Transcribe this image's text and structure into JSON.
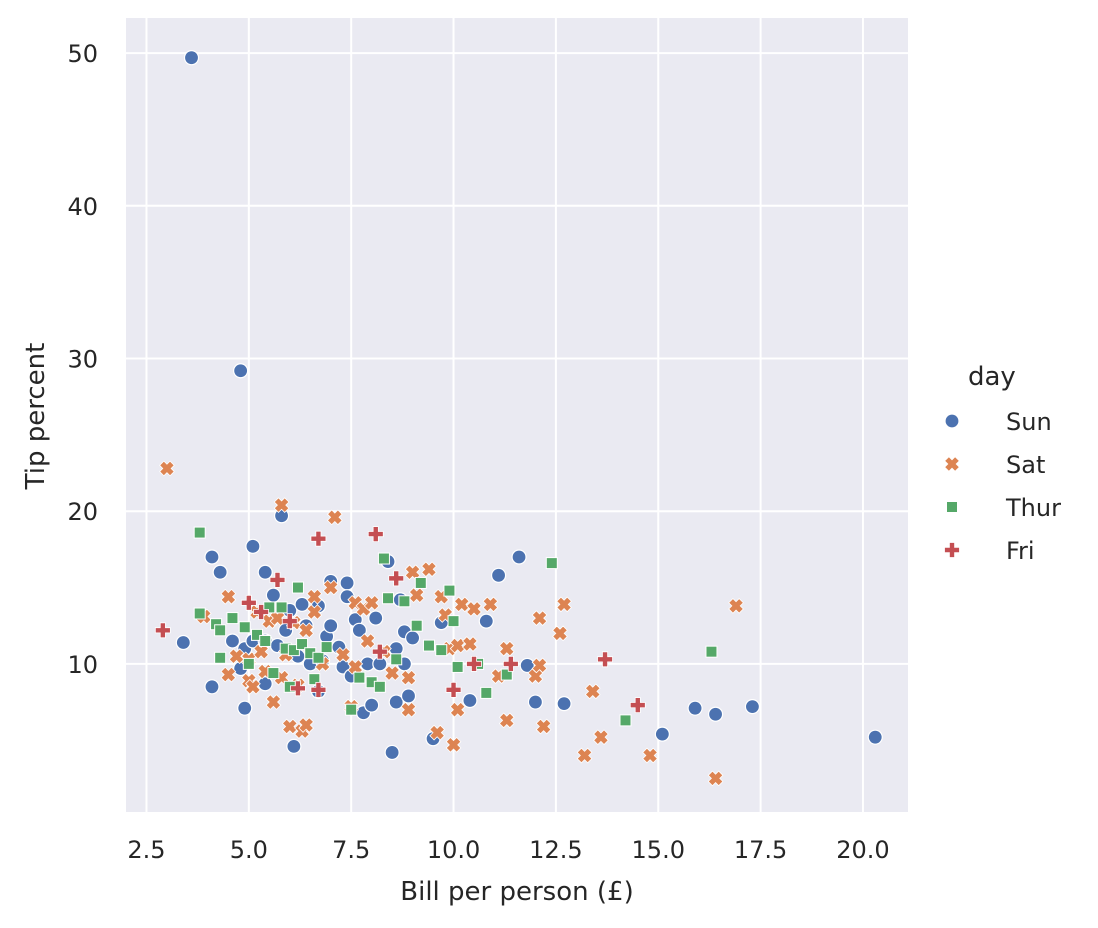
{
  "chart_data": {
    "type": "scatter",
    "title": "",
    "xlabel": "Bill per person (£)",
    "ylabel": "Tip percent",
    "xlim": [
      2.0,
      21.1
    ],
    "ylim": [
      0.3,
      52.3
    ],
    "xticks": [
      2.5,
      5.0,
      7.5,
      10.0,
      12.5,
      15.0,
      17.5,
      20.0
    ],
    "xtick_labels": [
      "2.5",
      "5.0",
      "7.5",
      "10.0",
      "12.5",
      "15.0",
      "17.5",
      "20.0"
    ],
    "yticks": [
      10,
      20,
      30,
      40,
      50
    ],
    "ytick_labels": [
      "10",
      "20",
      "30",
      "40",
      "50"
    ],
    "grid": true,
    "background": "#eaeaf2",
    "legend": {
      "title": "day",
      "placement": "right"
    },
    "series": [
      {
        "name": "Sun",
        "marker": "circle",
        "color": "#4c72b0",
        "points": [
          [
            3.6,
            49.7
          ],
          [
            4.8,
            29.2
          ],
          [
            3.4,
            11.4
          ],
          [
            4.1,
            8.5
          ],
          [
            4.1,
            17.0
          ],
          [
            4.3,
            16.0
          ],
          [
            4.6,
            11.5
          ],
          [
            4.8,
            9.7
          ],
          [
            4.9,
            7.1
          ],
          [
            4.9,
            11.0
          ],
          [
            5.1,
            11.5
          ],
          [
            5.1,
            17.7
          ],
          [
            5.4,
            16.0
          ],
          [
            5.4,
            11.5
          ],
          [
            5.4,
            8.7
          ],
          [
            5.6,
            14.5
          ],
          [
            5.7,
            11.2
          ],
          [
            5.8,
            19.7
          ],
          [
            5.9,
            12.2
          ],
          [
            6.0,
            13.5
          ],
          [
            6.1,
            4.6
          ],
          [
            6.2,
            10.5
          ],
          [
            6.3,
            13.9
          ],
          [
            6.4,
            12.5
          ],
          [
            6.5,
            10.0
          ],
          [
            6.7,
            8.2
          ],
          [
            6.7,
            13.8
          ],
          [
            6.8,
            10.2
          ],
          [
            6.9,
            11.8
          ],
          [
            7.0,
            15.4
          ],
          [
            7.0,
            12.5
          ],
          [
            7.2,
            11.1
          ],
          [
            7.3,
            9.8
          ],
          [
            7.4,
            15.3
          ],
          [
            7.4,
            14.4
          ],
          [
            7.5,
            9.2
          ],
          [
            7.6,
            12.9
          ],
          [
            7.7,
            12.2
          ],
          [
            7.8,
            6.8
          ],
          [
            8.0,
            7.3
          ],
          [
            7.9,
            10.0
          ],
          [
            8.1,
            13.0
          ],
          [
            8.2,
            10.0
          ],
          [
            8.4,
            16.7
          ],
          [
            8.5,
            4.2
          ],
          [
            8.6,
            7.5
          ],
          [
            8.6,
            11.0
          ],
          [
            8.7,
            14.2
          ],
          [
            8.8,
            12.1
          ],
          [
            8.8,
            10.0
          ],
          [
            8.9,
            7.9
          ],
          [
            9.0,
            11.7
          ],
          [
            9.5,
            5.1
          ],
          [
            9.7,
            12.7
          ],
          [
            10.4,
            7.6
          ],
          [
            10.8,
            12.8
          ],
          [
            11.1,
            15.8
          ],
          [
            11.6,
            17.0
          ],
          [
            11.8,
            9.9
          ],
          [
            12.0,
            7.5
          ],
          [
            12.7,
            7.4
          ],
          [
            15.1,
            5.4
          ],
          [
            15.9,
            7.1
          ],
          [
            16.4,
            6.7
          ],
          [
            17.3,
            7.2
          ],
          [
            20.3,
            5.2
          ]
        ]
      },
      {
        "name": "Sat",
        "marker": "x",
        "color": "#dd8452",
        "points": [
          [
            3.0,
            22.8
          ],
          [
            3.9,
            13.1
          ],
          [
            4.5,
            14.4
          ],
          [
            4.5,
            9.3
          ],
          [
            4.7,
            10.5
          ],
          [
            5.0,
            8.9
          ],
          [
            5.0,
            10.3
          ],
          [
            5.1,
            8.5
          ],
          [
            5.2,
            13.4
          ],
          [
            5.3,
            10.8
          ],
          [
            5.4,
            9.5
          ],
          [
            5.5,
            12.8
          ],
          [
            5.6,
            7.5
          ],
          [
            5.7,
            13.0
          ],
          [
            5.8,
            20.4
          ],
          [
            5.8,
            9.1
          ],
          [
            5.9,
            10.6
          ],
          [
            6.0,
            5.9
          ],
          [
            6.1,
            12.7
          ],
          [
            6.2,
            8.6
          ],
          [
            6.3,
            5.6
          ],
          [
            6.4,
            12.2
          ],
          [
            6.4,
            6.0
          ],
          [
            6.6,
            14.4
          ],
          [
            6.6,
            13.4
          ],
          [
            6.8,
            10.0
          ],
          [
            7.0,
            15.0
          ],
          [
            7.1,
            19.6
          ],
          [
            7.3,
            10.6
          ],
          [
            7.5,
            7.2
          ],
          [
            7.6,
            14.0
          ],
          [
            7.6,
            9.8
          ],
          [
            7.8,
            13.6
          ],
          [
            7.9,
            11.5
          ],
          [
            8.0,
            14.0
          ],
          [
            8.3,
            10.8
          ],
          [
            8.5,
            9.4
          ],
          [
            8.9,
            9.1
          ],
          [
            8.9,
            7.0
          ],
          [
            9.0,
            16.0
          ],
          [
            9.1,
            14.5
          ],
          [
            9.4,
            16.2
          ],
          [
            9.6,
            5.5
          ],
          [
            9.7,
            14.4
          ],
          [
            9.8,
            13.2
          ],
          [
            9.9,
            11.0
          ],
          [
            10.0,
            4.7
          ],
          [
            10.1,
            7.0
          ],
          [
            10.1,
            11.2
          ],
          [
            10.2,
            13.9
          ],
          [
            10.4,
            11.3
          ],
          [
            10.5,
            13.6
          ],
          [
            10.9,
            13.9
          ],
          [
            11.1,
            9.2
          ],
          [
            11.3,
            11.0
          ],
          [
            11.3,
            6.3
          ],
          [
            12.0,
            9.2
          ],
          [
            12.1,
            9.9
          ],
          [
            12.1,
            13.0
          ],
          [
            12.2,
            5.9
          ],
          [
            12.6,
            12.0
          ],
          [
            12.7,
            13.9
          ],
          [
            13.2,
            4.0
          ],
          [
            13.4,
            8.2
          ],
          [
            13.6,
            5.2
          ],
          [
            14.8,
            4.0
          ],
          [
            16.4,
            2.5
          ],
          [
            16.9,
            13.8
          ]
        ]
      },
      {
        "name": "Thur",
        "marker": "square",
        "color": "#55a868",
        "points": [
          [
            3.8,
            18.6
          ],
          [
            3.8,
            13.3
          ],
          [
            4.2,
            12.6
          ],
          [
            4.3,
            12.2
          ],
          [
            4.3,
            10.4
          ],
          [
            4.6,
            13.0
          ],
          [
            4.9,
            12.4
          ],
          [
            5.0,
            10.0
          ],
          [
            5.2,
            11.9
          ],
          [
            5.4,
            11.5
          ],
          [
            5.5,
            13.7
          ],
          [
            5.6,
            9.4
          ],
          [
            5.8,
            13.7
          ],
          [
            5.9,
            11.0
          ],
          [
            6.0,
            8.5
          ],
          [
            6.1,
            10.9
          ],
          [
            6.2,
            15.0
          ],
          [
            6.3,
            11.3
          ],
          [
            6.5,
            10.7
          ],
          [
            6.6,
            9.0
          ],
          [
            6.7,
            10.4
          ],
          [
            6.9,
            11.1
          ],
          [
            7.5,
            7.0
          ],
          [
            7.7,
            9.1
          ],
          [
            8.0,
            8.8
          ],
          [
            8.2,
            8.5
          ],
          [
            8.3,
            16.9
          ],
          [
            8.4,
            14.3
          ],
          [
            8.6,
            10.3
          ],
          [
            8.8,
            14.1
          ],
          [
            9.1,
            12.5
          ],
          [
            9.2,
            15.3
          ],
          [
            9.4,
            11.2
          ],
          [
            9.7,
            10.9
          ],
          [
            9.9,
            14.8
          ],
          [
            10.0,
            12.8
          ],
          [
            10.1,
            9.8
          ],
          [
            10.6,
            10.0
          ],
          [
            10.8,
            8.1
          ],
          [
            11.3,
            9.3
          ],
          [
            12.4,
            16.6
          ],
          [
            14.2,
            6.3
          ],
          [
            16.3,
            10.8
          ]
        ]
      },
      {
        "name": "Fri",
        "marker": "plus",
        "color": "#c44e52",
        "points": [
          [
            2.9,
            12.2
          ],
          [
            5.0,
            14.0
          ],
          [
            5.3,
            13.4
          ],
          [
            5.7,
            15.5
          ],
          [
            6.0,
            12.8
          ],
          [
            6.2,
            8.4
          ],
          [
            6.7,
            18.2
          ],
          [
            6.7,
            8.3
          ],
          [
            8.1,
            18.5
          ],
          [
            8.2,
            10.8
          ],
          [
            8.6,
            15.6
          ],
          [
            10.0,
            8.3
          ],
          [
            10.5,
            10.0
          ],
          [
            11.4,
            10.0
          ],
          [
            13.7,
            10.3
          ],
          [
            14.5,
            7.3
          ]
        ]
      }
    ]
  }
}
